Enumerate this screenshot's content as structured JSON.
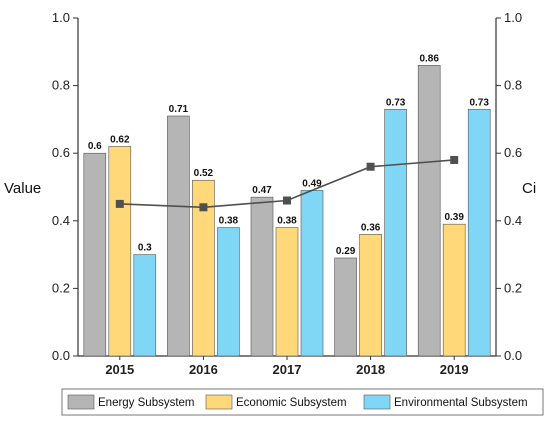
{
  "chart_data": {
    "type": "bar",
    "categories": [
      "2015",
      "2016",
      "2017",
      "2018",
      "2019"
    ],
    "series": [
      {
        "name": "Energy Subsystem",
        "values": [
          0.6,
          0.71,
          0.47,
          0.29,
          0.86
        ],
        "labels": [
          "0.6",
          "0.71",
          "0.47",
          "0.29",
          "0.86"
        ],
        "color": "#b5b5b5"
      },
      {
        "name": "Economic Subsystem",
        "values": [
          0.62,
          0.52,
          0.38,
          0.36,
          0.39
        ],
        "labels": [
          "0.62",
          "0.52",
          "0.38",
          "0.36",
          "0.39"
        ],
        "color": "#ffd87a"
      },
      {
        "name": "Environmental Subsystem",
        "values": [
          0.3,
          0.38,
          0.49,
          0.73,
          0.73
        ],
        "labels": [
          "0.3",
          "0.38",
          "0.49",
          "0.73",
          "0.73"
        ],
        "color": "#7fd7f5"
      }
    ],
    "ci_line": {
      "values": [
        0.45,
        0.44,
        0.46,
        0.56,
        0.58
      ],
      "color": "#505050",
      "axis": "right"
    },
    "ylabel_left": "Value",
    "ylabel_right": "Ci",
    "ylim": [
      0.0,
      1.0
    ],
    "yticks": [
      "0.0",
      "0.2",
      "0.4",
      "0.6",
      "0.8",
      "1.0"
    ],
    "legend_position": "bottom"
  }
}
